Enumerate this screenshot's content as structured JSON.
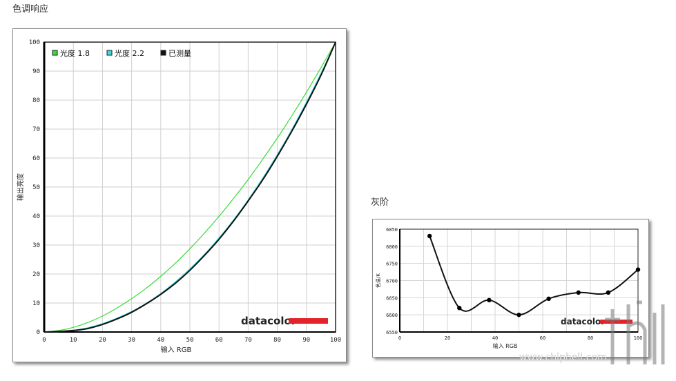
{
  "page": {
    "heading_gamma": "色调响应",
    "heading_gray": "灰阶"
  },
  "brand": {
    "logo_text": "datacolor",
    "logo_color": "#e2232a"
  },
  "watermark": {
    "text": "www.chiphell.com"
  },
  "chart_data": [
    {
      "type": "line",
      "id": "gamma",
      "title": "",
      "xlabel": "输入 RGB",
      "ylabel": "输出亮度",
      "xlim": [
        0,
        100
      ],
      "ylim": [
        0,
        100
      ],
      "xticks": [
        0,
        10,
        20,
        30,
        40,
        50,
        60,
        70,
        80,
        90,
        100
      ],
      "yticks": [
        0,
        10,
        20,
        30,
        40,
        50,
        60,
        70,
        80,
        90,
        100
      ],
      "grid": true,
      "legend_position": "top-left",
      "x": [
        0,
        5,
        10,
        15,
        20,
        25,
        30,
        35,
        40,
        45,
        50,
        55,
        60,
        65,
        70,
        75,
        80,
        85,
        90,
        95,
        100
      ],
      "series": [
        {
          "name": "光度 1.8",
          "color": "#33dd33",
          "width": 1.2,
          "values": [
            0,
            0.5,
            1.6,
            3.3,
            5.5,
            8.3,
            11.5,
            15.1,
            19.2,
            23.7,
            28.7,
            34.1,
            39.9,
            46.1,
            52.6,
            59.6,
            66.9,
            74.6,
            82.7,
            91.2,
            100
          ]
        },
        {
          "name": "光度 2.2",
          "color": "#33dddd",
          "width": 1.2,
          "values": [
            0,
            0.1,
            0.6,
            1.5,
            2.9,
            4.8,
            7.1,
            9.9,
            13.3,
            17.3,
            21.8,
            26.8,
            32.5,
            38.7,
            45.6,
            53.1,
            61.2,
            69.9,
            79.3,
            89.3,
            100
          ]
        },
        {
          "name": "已测量",
          "color": "#111111",
          "width": 2,
          "values": [
            0,
            0.2,
            0.5,
            1.2,
            2.6,
            4.5,
            6.8,
            9.7,
            13.0,
            16.8,
            21.3,
            26.4,
            32.0,
            38.3,
            45.2,
            52.5,
            60.6,
            69.3,
            78.6,
            88.6,
            100
          ]
        }
      ]
    },
    {
      "type": "line",
      "id": "grayscale",
      "title": "",
      "xlabel": "输入 RGB",
      "ylabel": "色温/K",
      "xlim": [
        0,
        100
      ],
      "ylim": [
        6550,
        6850
      ],
      "xticks": [
        0,
        20,
        40,
        60,
        80,
        100
      ],
      "yticks": [
        6550,
        6600,
        6650,
        6700,
        6750,
        6800,
        6850
      ],
      "grid": true,
      "series": [
        {
          "name": "",
          "color": "#111111",
          "x": [
            12.5,
            25,
            37.5,
            50,
            62.5,
            75,
            87.5,
            100
          ],
          "values": [
            6830,
            6620,
            6643,
            6600,
            6647,
            6665,
            6665,
            6732
          ]
        }
      ]
    }
  ]
}
